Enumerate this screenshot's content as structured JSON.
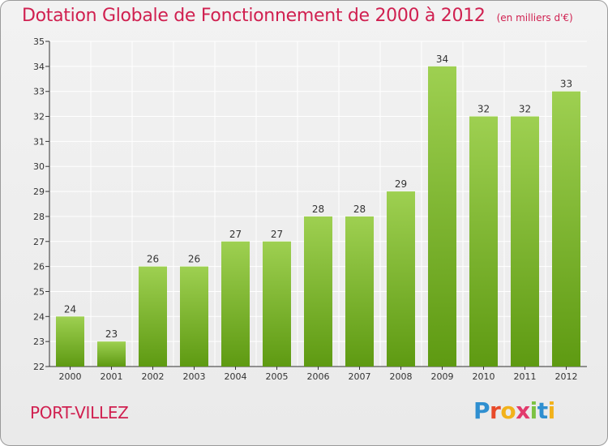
{
  "header": {
    "title": "Dotation Globale de Fonctionnement de 2000 à 2012",
    "unit_note": "(en milliers d'€)"
  },
  "footer": {
    "commune": "PORT-VILLEZ",
    "brand": "Proxiti",
    "brand_letters": [
      "P",
      "r",
      "o",
      "x",
      "i",
      "t",
      "i"
    ]
  },
  "colors": {
    "bar_top": "#9ed051",
    "bar_bottom": "#5e9a12",
    "title": "#d02050",
    "grid": "#ffffff",
    "axis": "#333333"
  },
  "chart_data": {
    "type": "bar",
    "title": "Dotation Globale de Fonctionnement de 2000 à 2012",
    "subtitle": "(en milliers d'€)",
    "xlabel": "",
    "ylabel": "",
    "categories": [
      "2000",
      "2001",
      "2002",
      "2003",
      "2004",
      "2005",
      "2006",
      "2007",
      "2008",
      "2009",
      "2010",
      "2011",
      "2012"
    ],
    "values": [
      24,
      23,
      26,
      26,
      27,
      27,
      28,
      28,
      29,
      34,
      32,
      32,
      33
    ],
    "ylim": [
      22,
      35
    ],
    "yticks": [
      22,
      23,
      24,
      25,
      26,
      27,
      28,
      29,
      30,
      31,
      32,
      33,
      34,
      35
    ],
    "grid": true,
    "data_labels": true
  }
}
